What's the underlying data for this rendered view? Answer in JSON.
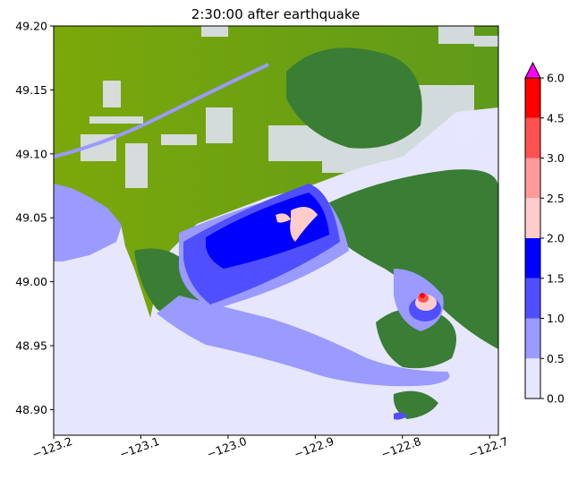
{
  "chart_data": {
    "type": "heatmap",
    "title": "2:30:00 after earthquake",
    "xlabel": "",
    "ylabel": "",
    "xlim": [
      -123.2,
      -122.69
    ],
    "ylim": [
      48.88,
      49.2
    ],
    "x_ticks": [
      -123.2,
      -123.1,
      -123.0,
      -122.9,
      -122.8,
      -122.7
    ],
    "x_tick_labels": [
      "−123.2",
      "−123.1",
      "−123.0",
      "−122.9",
      "−122.8",
      "−122.7"
    ],
    "y_ticks": [
      48.9,
      48.95,
      49.0,
      49.05,
      49.1,
      49.15,
      49.2
    ],
    "y_tick_labels": [
      "48.90",
      "48.95",
      "49.00",
      "49.05",
      "49.10",
      "49.15",
      "49.20"
    ],
    "colorbar": {
      "boundaries": [
        0.0,
        0.5,
        1.0,
        1.5,
        2.0,
        2.5,
        3.0,
        4.5,
        6.0
      ],
      "tick_labels": [
        "0.0",
        "0.5",
        "1.0",
        "1.5",
        "2.0",
        "2.5",
        "3.0",
        "4.5",
        "6.0"
      ],
      "colors": [
        "#e6e6ff",
        "#9a9aff",
        "#4f4fff",
        "#0000ff",
        "#ffcccc",
        "#ff9a9a",
        "#ff5050",
        "#ff0000"
      ],
      "extend_color": "#ff00ff",
      "extend": "max"
    },
    "land_colors": {
      "lowland": "#7ba80a",
      "highland": "#3a7d34",
      "water_background": "#e6e6ff"
    }
  }
}
